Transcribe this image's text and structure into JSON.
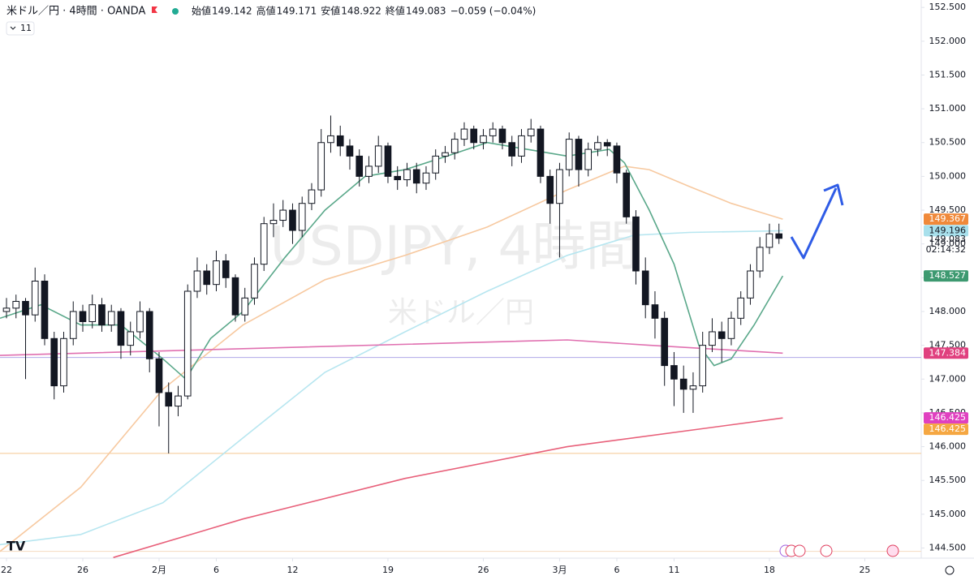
{
  "header": {
    "symbol": "米ドル／円 · 4時間 · OANDA",
    "ohlc": [
      {
        "label": "始値",
        "value": 149.142
      },
      {
        "label": "高値",
        "value": 149.171
      },
      {
        "label": "安値",
        "value": 148.922
      },
      {
        "label": "終値",
        "value": 149.083
      }
    ],
    "change": "−0.059 (−0.04%)",
    "indicator_count": "11"
  },
  "watermark": {
    "symbol": "USDJPY, 4時間",
    "name": "米ドル／円"
  },
  "chart_data": {
    "type": "candlestick",
    "xlim": [
      -0.34,
      47.96
    ],
    "ylim": [
      144.35,
      152.61
    ],
    "xticks": [
      {
        "value": 0,
        "label": "22"
      },
      {
        "value": 4,
        "label": "26"
      },
      {
        "value": 8,
        "label": "2月"
      },
      {
        "value": 11,
        "label": "6"
      },
      {
        "value": 15,
        "label": "12"
      },
      {
        "value": 20,
        "label": "19"
      },
      {
        "value": 25,
        "label": "26"
      },
      {
        "value": 29,
        "label": "3月"
      },
      {
        "value": 32,
        "label": "6"
      },
      {
        "value": 35,
        "label": "11"
      },
      {
        "value": 40,
        "label": "18"
      },
      {
        "value": 45,
        "label": "25"
      }
    ],
    "yticks": [
      {
        "value": 144.5,
        "label": "144.500"
      },
      {
        "value": 145,
        "label": "145.000"
      },
      {
        "value": 145.5,
        "label": "145.500"
      },
      {
        "value": 146,
        "label": "146.000"
      },
      {
        "value": 146.5,
        "label": "146.500"
      },
      {
        "value": 147,
        "label": "147.000"
      },
      {
        "value": 147.5,
        "label": "147.500"
      },
      {
        "value": 148,
        "label": "148.000"
      },
      {
        "value": 148.5,
        "label": "148.500"
      },
      {
        "value": 149,
        "label": "149.000"
      },
      {
        "value": 149.5,
        "label": "149.500"
      },
      {
        "value": 150,
        "label": "150.000"
      },
      {
        "value": 150.5,
        "label": "150.500"
      },
      {
        "value": 151,
        "label": "151.000"
      },
      {
        "value": 151.5,
        "label": "151.500"
      },
      {
        "value": 152,
        "label": "152.000"
      },
      {
        "value": 152.5,
        "label": "152.500"
      }
    ],
    "up_color": "#ffffff",
    "down_color": "#131722",
    "wick_color": "#131722",
    "x": [
      0,
      0.5,
      1,
      1.5,
      2,
      2.5,
      3,
      3.5,
      4,
      4.5,
      5,
      5.5,
      6,
      6.5,
      7,
      7.5,
      8,
      8.5,
      9,
      9.5,
      10,
      10.5,
      11,
      11.5,
      12,
      12.5,
      13,
      13.5,
      14,
      14.5,
      15,
      15.5,
      16,
      16.5,
      17,
      17.5,
      18,
      18.5,
      19,
      19.5,
      20,
      20.5,
      21,
      21.5,
      22,
      22.5,
      23,
      23.5,
      24,
      24.5,
      25,
      25.5,
      26,
      26.5,
      27,
      27.5,
      28,
      28.5,
      29,
      29.5,
      30,
      30.5,
      31,
      31.5,
      32,
      32.5,
      33,
      33.5,
      34,
      34.5,
      35,
      35.5,
      36,
      36.5,
      37,
      37.5,
      38,
      38.5,
      39,
      39.5,
      40,
      40.5
    ],
    "ohlc": [
      [
        148.0,
        148.2,
        147.9,
        148.05
      ],
      [
        148.05,
        148.25,
        147.9,
        148.15
      ],
      [
        148.15,
        148.2,
        147.0,
        147.95
      ],
      [
        147.95,
        148.65,
        147.85,
        148.45
      ],
      [
        148.45,
        148.55,
        147.5,
        147.6
      ],
      [
        147.6,
        147.7,
        146.7,
        146.9
      ],
      [
        146.9,
        147.7,
        146.8,
        147.6
      ],
      [
        147.6,
        148.15,
        147.5,
        148.0
      ],
      [
        148.0,
        148.1,
        147.7,
        147.85
      ],
      [
        147.85,
        148.25,
        147.75,
        148.1
      ],
      [
        148.1,
        148.2,
        147.7,
        147.8
      ],
      [
        147.8,
        148.1,
        147.7,
        148.0
      ],
      [
        148.0,
        148.05,
        147.3,
        147.5
      ],
      [
        147.5,
        147.85,
        147.35,
        147.7
      ],
      [
        147.7,
        148.15,
        147.6,
        148.0
      ],
      [
        148.0,
        148.05,
        147.1,
        147.3
      ],
      [
        147.3,
        147.4,
        146.3,
        146.8
      ],
      [
        146.8,
        146.95,
        145.9,
        146.6
      ],
      [
        146.6,
        146.9,
        146.45,
        146.75
      ],
      [
        146.75,
        148.4,
        146.7,
        148.3
      ],
      [
        148.3,
        148.8,
        148.2,
        148.6
      ],
      [
        148.6,
        148.7,
        148.25,
        148.4
      ],
      [
        148.4,
        148.9,
        148.3,
        148.75
      ],
      [
        148.75,
        148.85,
        148.35,
        148.5
      ],
      [
        148.5,
        148.55,
        147.85,
        147.95
      ],
      [
        147.95,
        148.35,
        147.85,
        148.2
      ],
      [
        148.2,
        148.8,
        148.1,
        148.7
      ],
      [
        148.7,
        149.4,
        148.6,
        149.3
      ],
      [
        149.3,
        149.6,
        149.1,
        149.35
      ],
      [
        149.35,
        149.65,
        149.25,
        149.5
      ],
      [
        149.5,
        149.6,
        149.0,
        149.2
      ],
      [
        149.2,
        149.7,
        149.1,
        149.6
      ],
      [
        149.6,
        149.9,
        149.5,
        149.8
      ],
      [
        149.8,
        150.7,
        149.7,
        150.5
      ],
      [
        150.5,
        150.9,
        150.35,
        150.6
      ],
      [
        150.6,
        150.75,
        150.3,
        150.45
      ],
      [
        150.45,
        150.55,
        150.1,
        150.3
      ],
      [
        150.3,
        150.4,
        149.85,
        150.0
      ],
      [
        150.0,
        150.3,
        149.9,
        150.15
      ],
      [
        150.15,
        150.6,
        150.05,
        150.45
      ],
      [
        150.45,
        150.5,
        149.9,
        150.0
      ],
      [
        150.0,
        150.15,
        149.8,
        149.95
      ],
      [
        149.95,
        150.2,
        149.85,
        150.1
      ],
      [
        150.1,
        150.2,
        149.75,
        149.9
      ],
      [
        149.9,
        150.15,
        149.8,
        150.05
      ],
      [
        150.05,
        150.4,
        149.95,
        150.3
      ],
      [
        150.3,
        150.45,
        150.2,
        150.35
      ],
      [
        150.35,
        150.65,
        150.25,
        150.55
      ],
      [
        150.55,
        150.8,
        150.45,
        150.7
      ],
      [
        150.7,
        150.75,
        150.4,
        150.5
      ],
      [
        150.5,
        150.7,
        150.4,
        150.6
      ],
      [
        150.6,
        150.8,
        150.5,
        150.7
      ],
      [
        150.7,
        150.75,
        150.4,
        150.5
      ],
      [
        150.5,
        150.6,
        150.15,
        150.3
      ],
      [
        150.3,
        150.7,
        150.2,
        150.6
      ],
      [
        150.6,
        150.85,
        150.5,
        150.7
      ],
      [
        150.7,
        150.75,
        149.9,
        150.0
      ],
      [
        150.0,
        150.1,
        149.3,
        149.6
      ],
      [
        149.6,
        150.2,
        148.8,
        150.1
      ],
      [
        150.1,
        150.65,
        150.0,
        150.55
      ],
      [
        150.55,
        150.6,
        149.85,
        150.1
      ],
      [
        150.1,
        150.5,
        150.0,
        150.4
      ],
      [
        150.4,
        150.6,
        150.3,
        150.5
      ],
      [
        150.5,
        150.55,
        150.3,
        150.45
      ],
      [
        150.45,
        150.5,
        149.9,
        150.05
      ],
      [
        150.05,
        150.1,
        149.3,
        149.4
      ],
      [
        149.4,
        149.5,
        148.4,
        148.6
      ],
      [
        148.6,
        148.8,
        147.9,
        148.1
      ],
      [
        148.1,
        148.3,
        147.6,
        147.9
      ],
      [
        147.9,
        148.0,
        146.9,
        147.2
      ],
      [
        147.2,
        147.4,
        146.6,
        147.0
      ],
      [
        147.0,
        147.2,
        146.5,
        146.85
      ],
      [
        146.85,
        147.1,
        146.5,
        146.9
      ],
      [
        146.9,
        147.7,
        146.8,
        147.5
      ],
      [
        147.5,
        147.9,
        147.4,
        147.7
      ],
      [
        147.7,
        147.85,
        147.25,
        147.6
      ],
      [
        147.6,
        148.0,
        147.5,
        147.9
      ],
      [
        147.9,
        148.3,
        147.8,
        148.2
      ],
      [
        148.2,
        148.7,
        148.1,
        148.6
      ],
      [
        148.6,
        149.1,
        148.5,
        148.95
      ],
      [
        148.95,
        149.3,
        148.85,
        149.15
      ],
      [
        149.15,
        149.3,
        149.0,
        149.083
      ]
    ],
    "series": [
      {
        "color": "#f7c9a0",
        "x": [
          -0.34,
          3.9,
          8.2,
          12.4,
          16.7,
          20.9,
          25.2,
          29.4,
          32.4,
          33.7,
          35.8,
          38,
          40.7
        ],
        "values": [
          144.45,
          145.4,
          146.85,
          147.8,
          148.47,
          148.83,
          149.25,
          149.8,
          150.15,
          150.1,
          149.85,
          149.6,
          149.367
        ]
      },
      {
        "color": "#b7e6f0",
        "x": [
          -0.34,
          3.9,
          8.2,
          12.4,
          16.7,
          20.9,
          25.2,
          29.4,
          32.9,
          35.8,
          40.7
        ],
        "values": [
          144.55,
          144.7,
          145.17,
          146.13,
          147.1,
          147.7,
          148.3,
          148.83,
          149.13,
          149.17,
          149.196
        ]
      },
      {
        "color": "#5aa88a",
        "x": [
          -0.34,
          1.8,
          3.9,
          6.0,
          8.2,
          9.4,
          10.7,
          12.4,
          14.6,
          16.7,
          18.8,
          20.9,
          23.1,
          25.2,
          27.3,
          29.4,
          31.6,
          32.4,
          33.7,
          35.0,
          36.3,
          37.1,
          38.0,
          39.2,
          40.7
        ],
        "values": [
          147.9,
          148.1,
          147.8,
          147.8,
          147.3,
          147.0,
          147.6,
          148.0,
          148.8,
          149.5,
          150.0,
          150.1,
          150.3,
          150.5,
          150.4,
          150.3,
          150.4,
          150.2,
          149.5,
          148.7,
          147.5,
          147.2,
          147.3,
          147.8,
          148.527
        ]
      },
      {
        "color": "#e070b0",
        "x": [
          -0.34,
          12.4,
          29.4,
          33.7,
          40.7
        ],
        "values": [
          147.35,
          147.45,
          147.58,
          147.5,
          147.384
        ]
      },
      {
        "color": "#e8607a",
        "x": [
          5.6,
          12.4,
          20.9,
          29.4,
          40.7
        ],
        "values": [
          144.36,
          144.93,
          145.53,
          146.0,
          146.425
        ]
      }
    ],
    "hlines": [
      {
        "value": 147.32,
        "color": "#b0a8e8"
      },
      {
        "value": 145.9,
        "color": "#f5c890"
      },
      {
        "value": 144.45,
        "color": "#f5dcc0"
      }
    ],
    "price_tags": [
      {
        "value": 149.367,
        "color": "#f0893a"
      },
      {
        "value": 149.196,
        "color": "#a8e0ec"
      },
      {
        "value": 148.527,
        "color": "#3d9970"
      },
      {
        "value": 147.384,
        "color": "#e0407f"
      },
      {
        "value": 146.425,
        "color": "#e040c0"
      },
      {
        "value": 146.425,
        "color": "#f5a742"
      }
    ],
    "last_price": 149.083,
    "countdown": "02:14:32"
  }
}
